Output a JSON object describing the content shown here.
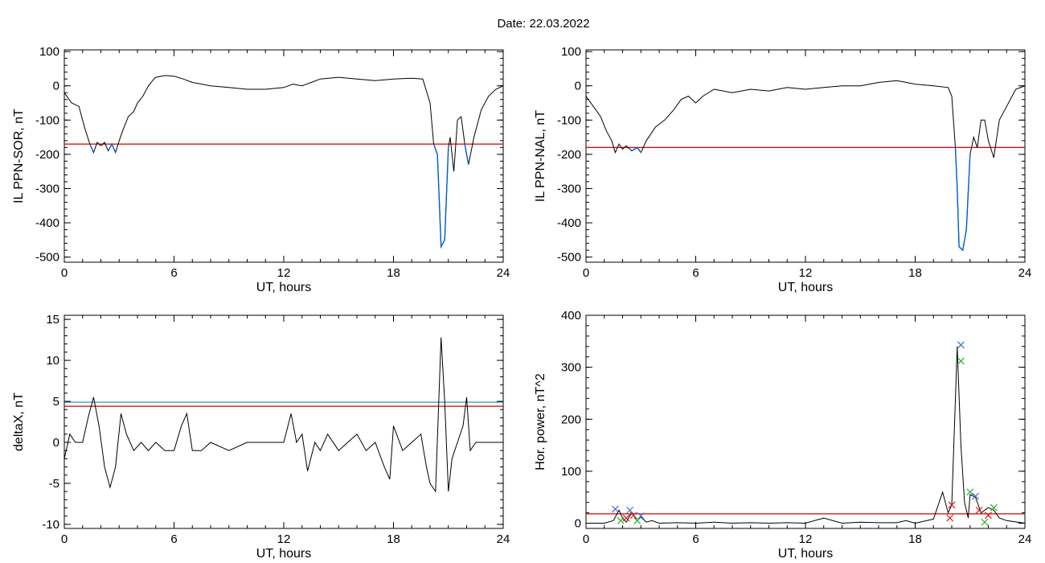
{
  "figure": {
    "title": "Date:  22.03.2022"
  },
  "colors": {
    "trace": "#000000",
    "threshold": "#d40000",
    "highlight": "#0060d0",
    "threshold2": "#1a8a9a",
    "marker_a": "#3a6fd8",
    "marker_b": "#d42020",
    "marker_c": "#20b020"
  },
  "chart_data": [
    {
      "type": "line",
      "xlabel": "UT, hours",
      "ylabel": "IL PPN-SOR, nT",
      "xlim": [
        0,
        24
      ],
      "ylim": [
        -515,
        105
      ],
      "xticks": [
        0,
        6,
        12,
        18,
        24
      ],
      "yticks": [
        100,
        0,
        -100,
        -200,
        -300,
        -400,
        -500
      ],
      "threshold": -170,
      "series": [
        {
          "x": [
            0,
            0.4,
            0.8,
            1.1,
            1.4,
            1.6,
            1.8,
            2.0,
            2.2,
            2.4,
            2.6,
            2.8,
            3.0,
            3.2,
            3.5,
            3.8,
            4.0,
            4.3,
            4.6,
            4.9,
            5.0,
            5.5,
            6.0,
            6.5,
            7.0,
            8.0,
            9.0,
            10.0,
            11.0,
            12.0,
            12.5,
            13.0,
            13.5,
            14.0,
            15.0,
            16.0,
            17.0,
            18.0,
            19.0,
            19.6,
            20.0,
            20.2,
            20.4,
            20.5,
            20.6,
            20.8,
            21.0,
            21.1,
            21.3,
            21.5,
            21.7,
            21.9,
            22.1,
            22.4,
            22.8,
            23.2,
            23.6,
            24.0
          ],
          "y": [
            -20,
            -50,
            -60,
            -120,
            -170,
            -195,
            -165,
            -175,
            -165,
            -190,
            -170,
            -195,
            -160,
            -130,
            -90,
            -75,
            -50,
            -30,
            0,
            20,
            25,
            30,
            28,
            20,
            10,
            0,
            -5,
            -10,
            -10,
            -5,
            5,
            0,
            10,
            20,
            25,
            20,
            15,
            20,
            22,
            20,
            -50,
            -170,
            -200,
            -330,
            -470,
            -450,
            -180,
            -150,
            -250,
            -100,
            -90,
            -170,
            -230,
            -150,
            -70,
            -30,
            -10,
            0
          ]
        }
      ]
    },
    {
      "type": "line",
      "xlabel": "UT, hours",
      "ylabel": "IL PPN-NAL, nT",
      "xlim": [
        0,
        24
      ],
      "ylim": [
        -515,
        105
      ],
      "xticks": [
        0,
        6,
        12,
        18,
        24
      ],
      "yticks": [
        100,
        0,
        -100,
        -200,
        -300,
        -400,
        -500
      ],
      "threshold": -180,
      "series": [
        {
          "x": [
            0,
            0.4,
            0.8,
            1.1,
            1.4,
            1.6,
            1.8,
            2.0,
            2.2,
            2.5,
            2.8,
            3.0,
            3.3,
            3.8,
            4.3,
            4.8,
            5.2,
            5.6,
            6.0,
            6.4,
            7.0,
            8.0,
            9.0,
            10.0,
            11.0,
            12.0,
            13.0,
            14.0,
            15.0,
            16.0,
            17.0,
            18.0,
            19.0,
            19.8,
            20.0,
            20.2,
            20.3,
            20.4,
            20.6,
            20.8,
            21.0,
            21.2,
            21.4,
            21.6,
            21.8,
            22.0,
            22.3,
            22.6,
            23.0,
            23.5,
            24.0
          ],
          "y": [
            -30,
            -60,
            -90,
            -130,
            -160,
            -195,
            -170,
            -185,
            -175,
            -190,
            -180,
            -195,
            -160,
            -120,
            -100,
            -70,
            -40,
            -30,
            -50,
            -30,
            -10,
            -20,
            -10,
            -15,
            -5,
            -10,
            -5,
            0,
            0,
            10,
            15,
            5,
            0,
            -5,
            -30,
            -180,
            -300,
            -470,
            -480,
            -420,
            -200,
            -150,
            -180,
            -100,
            -100,
            -160,
            -210,
            -100,
            -60,
            -10,
            0
          ]
        }
      ]
    },
    {
      "type": "line",
      "xlabel": "UT, hours",
      "ylabel": "deltaX, nT",
      "xlim": [
        0,
        24
      ],
      "ylim": [
        -10.5,
        15.5
      ],
      "xticks": [
        0,
        6,
        12,
        18,
        24
      ],
      "yticks": [
        15,
        10,
        5,
        0,
        -5,
        -10
      ],
      "threshold": 4.4,
      "threshold2": 4.9,
      "series": [
        {
          "x": [
            0,
            0.3,
            0.6,
            1.0,
            1.3,
            1.6,
            1.9,
            2.2,
            2.5,
            2.8,
            3.1,
            3.4,
            3.8,
            4.2,
            4.6,
            5.0,
            5.5,
            6.0,
            6.4,
            6.7,
            7.0,
            7.5,
            8.0,
            9.0,
            10.0,
            11.0,
            12.0,
            12.4,
            12.7,
            13.0,
            13.3,
            13.7,
            14.0,
            14.4,
            15.0,
            15.5,
            16.0,
            16.5,
            17.0,
            17.5,
            17.8,
            18.0,
            18.5,
            19.0,
            19.5,
            19.8,
            20.0,
            20.3,
            20.6,
            20.8,
            21.0,
            21.2,
            21.5,
            21.8,
            22.0,
            22.2,
            22.5,
            23.0,
            23.5,
            24.0
          ],
          "y": [
            -2,
            1,
            0,
            0,
            3,
            5.5,
            2,
            -3,
            -5.5,
            -3,
            3.5,
            1,
            -1,
            0,
            -1,
            0,
            -1,
            -1,
            2,
            3.5,
            -1,
            -1,
            0,
            -1,
            0,
            0,
            0,
            3.5,
            0,
            1,
            -3.5,
            0,
            -1,
            1,
            -1,
            0,
            1,
            -1,
            0,
            -3,
            -4.5,
            2,
            -1,
            0,
            1,
            -3,
            -5,
            -6,
            12.8,
            5,
            -6,
            -2,
            0,
            2,
            5.5,
            -1,
            0,
            0,
            0,
            0
          ]
        }
      ]
    },
    {
      "type": "line",
      "xlabel": "UT, hours",
      "ylabel": "Hor. power, nT^2",
      "xlim": [
        0,
        24
      ],
      "ylim": [
        -10,
        400
      ],
      "xticks": [
        0,
        6,
        12,
        18,
        24
      ],
      "yticks": [
        400,
        300,
        200,
        100,
        0
      ],
      "threshold": 18,
      "series": [
        {
          "x": [
            0,
            1.0,
            1.5,
            1.8,
            2.0,
            2.2,
            2.5,
            2.8,
            3.0,
            3.3,
            3.6,
            4.0,
            5.0,
            6.0,
            7.0,
            8.0,
            9.0,
            10.0,
            11.0,
            12.0,
            13.0,
            14.0,
            15.0,
            16.0,
            17.0,
            17.5,
            18.0,
            19.0,
            19.5,
            19.8,
            20.0,
            20.3,
            20.5,
            20.7,
            20.9,
            21.0,
            21.3,
            21.6,
            22.0,
            22.3,
            22.6,
            23.0,
            24.0
          ],
          "y": [
            0,
            0,
            5,
            25,
            10,
            2,
            20,
            5,
            12,
            2,
            5,
            0,
            1,
            0,
            2,
            0,
            1,
            0,
            1,
            0,
            10,
            0,
            2,
            1,
            1,
            5,
            0,
            8,
            60,
            20,
            35,
            340,
            150,
            40,
            10,
            55,
            50,
            20,
            30,
            25,
            10,
            5,
            0
          ]
        }
      ],
      "markers": {
        "blue": {
          "x": [
            1.6,
            2.4,
            3.0,
            20.5,
            21.3
          ],
          "y": [
            27,
            25,
            14,
            343,
            52
          ]
        },
        "red": {
          "x": [
            2.2,
            2.6,
            19.9,
            20.0,
            21.5,
            22.0
          ],
          "y": [
            10,
            15,
            10,
            35,
            25,
            15
          ]
        },
        "green": {
          "x": [
            1.9,
            2.8,
            20.5,
            21.0,
            21.8,
            22.3
          ],
          "y": [
            5,
            5,
            312,
            60,
            2,
            30
          ]
        }
      }
    }
  ]
}
